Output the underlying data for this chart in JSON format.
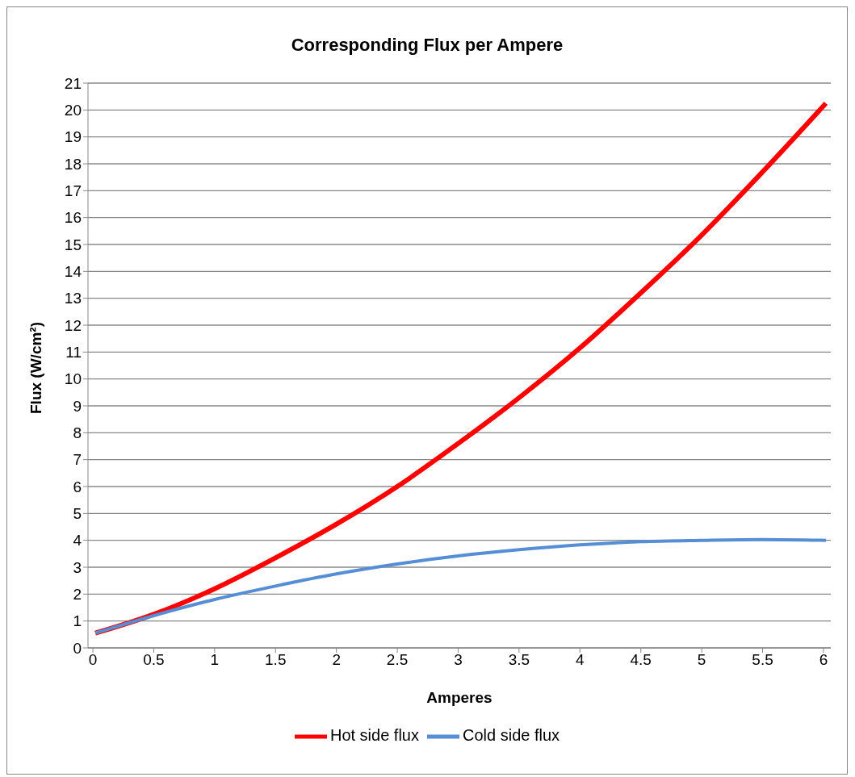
{
  "chart_data": {
    "type": "line",
    "title": "Corresponding Flux per Ampere",
    "xlabel": "Amperes",
    "ylabel": "Flux (W/cm²)",
    "x": [
      0.02,
      0.5,
      1,
      1.5,
      2,
      2.5,
      3,
      3.5,
      4,
      4.5,
      5,
      5.5,
      6.02
    ],
    "series": [
      {
        "name": "Hot side flux",
        "color": "#ff0000",
        "values": [
          0.55,
          1.25,
          2.2,
          3.35,
          4.6,
          6.0,
          7.6,
          9.3,
          11.15,
          13.2,
          15.35,
          17.7,
          20.25
        ]
      },
      {
        "name": "Cold side flux",
        "color": "#558ed5",
        "values": [
          0.55,
          1.2,
          1.8,
          2.3,
          2.75,
          3.12,
          3.42,
          3.65,
          3.83,
          3.95,
          4.0,
          4.03,
          4.0
        ]
      }
    ],
    "xlim": [
      -0.04,
      6.06
    ],
    "xticks": [
      0,
      0.5,
      1,
      1.5,
      2,
      2.5,
      3,
      3.5,
      4,
      4.5,
      5,
      5.5,
      6
    ],
    "ylim": [
      0,
      21
    ],
    "yticks": [
      0,
      1,
      2,
      3,
      4,
      5,
      6,
      7,
      8,
      9,
      10,
      11,
      12,
      13,
      14,
      15,
      16,
      17,
      18,
      19,
      20,
      21
    ],
    "grid": "y",
    "legend": "bottom",
    "marker": "none",
    "line_style": "solid"
  }
}
